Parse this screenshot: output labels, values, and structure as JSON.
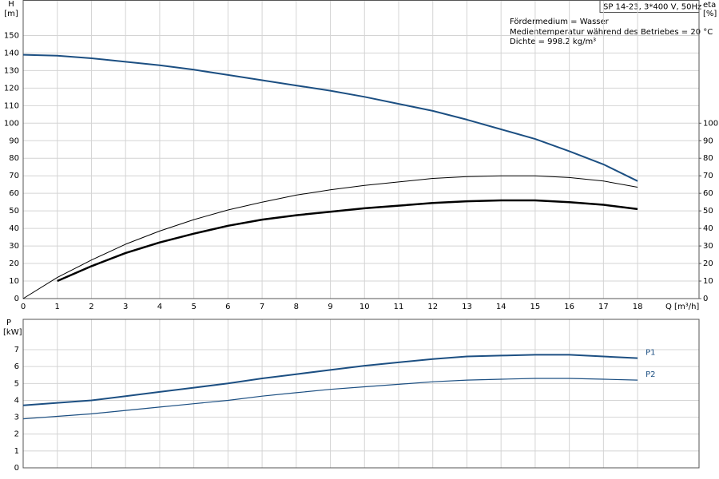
{
  "header": {
    "box": "SP 14-23, 3*400 V, 50Hz",
    "notes": [
      "Fördermedium = Wasser",
      "Medientemperatur während des Betriebes = 20 °C",
      "Dichte = 998.2 kg/m³"
    ]
  },
  "chart_data": [
    {
      "type": "line",
      "ylabel": [
        "H",
        "[m]"
      ],
      "y2label": [
        "eta",
        "[%]"
      ],
      "xlabel": "Q [m³/h]",
      "x": [
        0,
        1,
        2,
        3,
        4,
        5,
        6,
        7,
        8,
        9,
        10,
        11,
        12,
        13,
        14,
        15,
        16,
        17,
        18
      ],
      "xlim": [
        0,
        19.8
      ],
      "xticks": [
        0,
        1,
        2,
        3,
        4,
        5,
        6,
        7,
        8,
        9,
        10,
        11,
        12,
        13,
        14,
        15,
        16,
        17,
        18
      ],
      "ylim": [
        0,
        170
      ],
      "yticks": [
        0,
        10,
        20,
        30,
        40,
        50,
        60,
        70,
        80,
        90,
        100,
        110,
        120,
        130,
        140,
        150
      ],
      "y2lim": [
        0,
        170
      ],
      "y2ticks": [
        0,
        10,
        20,
        30,
        40,
        50,
        60,
        70,
        80,
        90,
        100
      ],
      "grid": true,
      "series": [
        {
          "color": "#1c4f82",
          "width": 2,
          "values": [
            139,
            138.5,
            137,
            135,
            133,
            130.5,
            127.5,
            124.5,
            121.5,
            118.5,
            115,
            111,
            107,
            102,
            96.5,
            91,
            84,
            76.5,
            67
          ]
        },
        {
          "color": "#000000",
          "width": 1,
          "axis": "y2",
          "values": [
            0,
            12,
            22,
            31,
            38.5,
            45,
            50.5,
            55,
            59,
            62,
            64.5,
            66.5,
            68.5,
            69.5,
            70,
            70,
            69,
            67,
            63.5
          ]
        },
        {
          "color": "#000000",
          "width": 2.5,
          "axis": "y2",
          "values": [
            null,
            10,
            18.5,
            26,
            32,
            37,
            41.5,
            45,
            47.5,
            49.5,
            51.5,
            53,
            54.5,
            55.5,
            56,
            56,
            55,
            53.5,
            51
          ]
        }
      ]
    },
    {
      "type": "line",
      "ylabel": [
        "P",
        "[kW]"
      ],
      "x": [
        0,
        1,
        2,
        3,
        4,
        5,
        6,
        7,
        8,
        9,
        10,
        11,
        12,
        13,
        14,
        15,
        16,
        17,
        18
      ],
      "xlim": [
        0,
        19.8
      ],
      "xticks": [
        0,
        1,
        2,
        3,
        4,
        5,
        6,
        7,
        8,
        9,
        10,
        11,
        12,
        13,
        14,
        15,
        16,
        17,
        18
      ],
      "ylim": [
        0,
        8.8
      ],
      "yticks": [
        0,
        1,
        2,
        3,
        4,
        5,
        6,
        7
      ],
      "grid": true,
      "series": [
        {
          "name": "P1",
          "color": "#1c4f82",
          "width": 2,
          "values": [
            3.7,
            3.85,
            4.0,
            4.25,
            4.5,
            4.75,
            5.0,
            5.3,
            5.55,
            5.8,
            6.05,
            6.25,
            6.45,
            6.6,
            6.65,
            6.7,
            6.7,
            6.6,
            6.5
          ]
        },
        {
          "name": "P2",
          "color": "#1c4f82",
          "width": 1.2,
          "values": [
            2.9,
            3.05,
            3.2,
            3.4,
            3.6,
            3.8,
            4.0,
            4.25,
            4.45,
            4.65,
            4.8,
            4.95,
            5.1,
            5.2,
            5.25,
            5.3,
            5.3,
            5.25,
            5.2
          ]
        }
      ]
    }
  ]
}
